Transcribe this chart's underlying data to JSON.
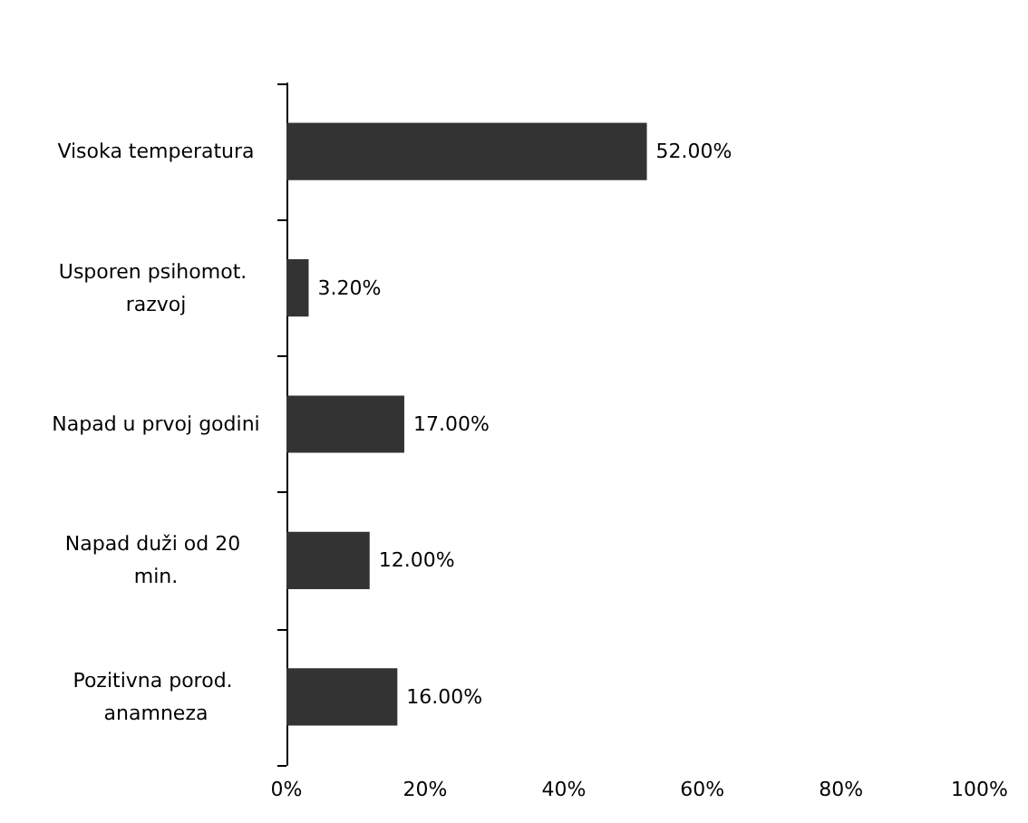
{
  "chart_data": {
    "type": "bar",
    "orientation": "horizontal",
    "categories": [
      "Visoka temperatura",
      "Usporen psihomot. razvoj",
      "Napad u prvoj godini",
      "Napad duži od 20 min.",
      "Pozitivna porod. anamneza"
    ],
    "values": [
      52,
      3.2,
      17,
      12,
      16
    ],
    "value_labels": [
      "52.00%",
      "3.20%",
      "17.00%",
      "12.00%",
      "16.00%"
    ],
    "color": "#333333",
    "xlim": [
      0,
      100
    ],
    "xticks": [
      {
        "value": 0,
        "label": "0%"
      },
      {
        "value": 20,
        "label": "20%"
      },
      {
        "value": 40,
        "label": "40%"
      },
      {
        "value": 60,
        "label": "60%"
      },
      {
        "value": 80,
        "label": "80%"
      },
      {
        "value": 100,
        "label": "100%"
      }
    ],
    "grid": false
  }
}
